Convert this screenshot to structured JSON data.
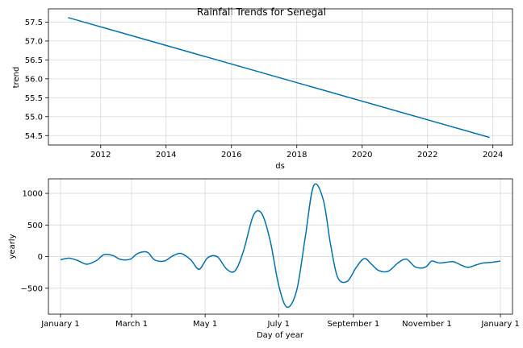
{
  "chart_data": [
    {
      "type": "line",
      "title": "Rainfall Trends for Senegal",
      "xlabel": "ds",
      "ylabel": "trend",
      "xlim": [
        2010.4,
        2024.6
      ],
      "ylim": [
        54.25,
        57.85
      ],
      "xticks": [
        2012,
        2014,
        2016,
        2018,
        2020,
        2022,
        2024
      ],
      "xtick_labels": [
        "2012",
        "2014",
        "2016",
        "2018",
        "2020",
        "2022",
        "2024"
      ],
      "yticks": [
        54.5,
        55.0,
        55.5,
        56.0,
        56.5,
        57.0,
        57.5
      ],
      "ytick_labels": [
        "54.5",
        "55.0",
        "55.5",
        "56.0",
        "56.5",
        "57.0",
        "57.5"
      ],
      "grid": true,
      "series": [
        {
          "x": [
            2011.0,
            2023.9
          ],
          "y": [
            57.62,
            54.45
          ],
          "color": "#0072B2"
        }
      ]
    },
    {
      "type": "line",
      "title": "",
      "xlabel": "Day of year",
      "ylabel": "yearly",
      "xlim": [
        -10,
        375
      ],
      "ylim": [
        -910,
        1230
      ],
      "xticks": [
        0,
        59,
        120,
        181,
        243,
        304,
        365
      ],
      "xtick_labels": [
        "January 1",
        "March 1",
        "May 1",
        "July 1",
        "September 1",
        "November 1",
        "January 1"
      ],
      "yticks": [
        -500,
        0,
        500,
        1000
      ],
      "ytick_labels": [
        "−500",
        "0",
        "500",
        "1000"
      ],
      "grid": true,
      "series": [
        {
          "color": "#0072B2",
          "x": [
            0,
            7,
            14,
            22,
            30,
            36,
            43,
            50,
            58,
            64,
            72,
            78,
            86,
            93,
            100,
            108,
            115,
            122,
            130,
            138,
            145,
            152,
            160,
            167,
            174,
            181,
            188,
            196,
            203,
            210,
            218,
            224,
            230,
            238,
            245,
            252,
            258,
            264,
            272,
            280,
            287,
            294,
            300,
            304,
            308,
            314,
            320,
            326,
            332,
            338,
            345,
            351,
            358,
            365
          ],
          "y": [
            -50,
            -25,
            -60,
            -120,
            -60,
            30,
            20,
            -45,
            -40,
            50,
            70,
            -50,
            -70,
            10,
            50,
            -50,
            -200,
            -20,
            0,
            -200,
            -220,
            100,
            650,
            680,
            250,
            -450,
            -800,
            -530,
            300,
            1120,
            900,
            200,
            -330,
            -390,
            -180,
            -30,
            -120,
            -220,
            -230,
            -100,
            -40,
            -160,
            -180,
            -150,
            -70,
            -100,
            -90,
            -80,
            -130,
            -170,
            -130,
            -100,
            -90,
            -70
          ]
        }
      ]
    }
  ]
}
